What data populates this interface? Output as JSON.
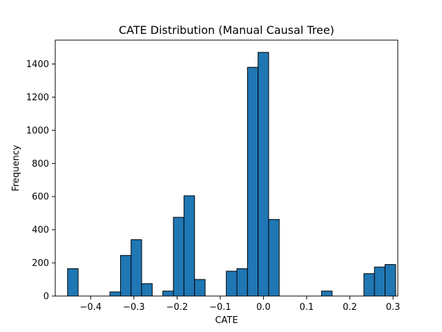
{
  "chart_data": {
    "type": "bar",
    "title": "CATE Distribution (Manual Causal Tree)",
    "xlabel": "CATE",
    "ylabel": "Frequency",
    "xlim": [
      -0.482,
      0.311
    ],
    "ylim": [
      0,
      1544
    ],
    "x_ticks": [
      -0.4,
      -0.3,
      -0.2,
      -0.1,
      0.0,
      0.1,
      0.2,
      0.3
    ],
    "x_tick_labels": [
      "−0.4",
      "−0.3",
      "−0.2",
      "−0.1",
      "0.0",
      "0.1",
      "0.2",
      "0.3"
    ],
    "y_ticks": [
      0,
      200,
      400,
      600,
      800,
      1000,
      1200,
      1400
    ],
    "y_tick_labels": [
      "0",
      "200",
      "400",
      "600",
      "800",
      "1000",
      "1200",
      "1400"
    ],
    "bin_range": [
      -0.4535,
      0.2815
    ],
    "bin_width": 0.0245,
    "counts": [
      165,
      0,
      0,
      0,
      25,
      245,
      340,
      75,
      0,
      30,
      475,
      605,
      100,
      0,
      0,
      150,
      165,
      1380,
      1470,
      462,
      0,
      0,
      0,
      0,
      30,
      0,
      0,
      0,
      135,
      175,
      190
    ],
    "grid": false,
    "legend": "none",
    "bar_color": "#1f77b4",
    "edge_color": "#000000"
  }
}
